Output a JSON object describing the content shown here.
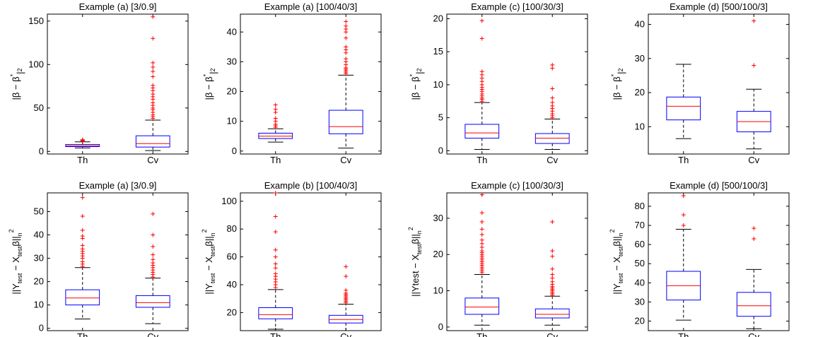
{
  "chart_data": [
    {
      "type": "box",
      "title": "Example (a) [3/0.9]",
      "ylabel": "|β − β*|2",
      "ylim": [
        -3,
        158
      ],
      "yticks": [
        0,
        50,
        100,
        150
      ],
      "categories": [
        "Th",
        "Cv"
      ],
      "boxes": [
        {
          "whisker_low": 4,
          "q1": 5.5,
          "median": 6.5,
          "q3": 8,
          "whisker_high": 11,
          "outliers": [
            12,
            12.5,
            13,
            13.5
          ]
        },
        {
          "whisker_low": 1,
          "q1": 5,
          "median": 9,
          "q3": 18,
          "whisker_high": 36,
          "outliers": [
            38,
            40,
            42,
            45,
            48,
            50,
            53,
            56,
            60,
            63,
            66,
            70,
            73,
            76,
            86,
            92,
            97,
            102,
            130,
            155
          ]
        }
      ]
    },
    {
      "type": "box",
      "title": "Example (a) [100/40/3]",
      "ylabel": "|β − β*|2",
      "ylim": [
        -1,
        46
      ],
      "yticks": [
        0,
        10,
        20,
        30,
        40
      ],
      "categories": [
        "Th",
        "Cv"
      ],
      "boxes": [
        {
          "whisker_low": 3,
          "q1": 4.2,
          "median": 5,
          "q3": 6,
          "whisker_high": 7.5,
          "outliers": [
            8,
            8.5,
            9,
            10,
            11,
            13,
            14,
            15.5
          ]
        },
        {
          "whisker_low": 1,
          "q1": 5.8,
          "median": 8.2,
          "q3": 13.7,
          "whisker_high": 25.5,
          "outliers": [
            26,
            26.5,
            27,
            27.5,
            28,
            29,
            30,
            31,
            33,
            34,
            35,
            38,
            40,
            41,
            42,
            43.5
          ]
        }
      ]
    },
    {
      "type": "box",
      "title": "Example (c) [100/30/3]",
      "ylabel": "|β − β*|2",
      "ylim": [
        -0.5,
        20.7
      ],
      "yticks": [
        0,
        5,
        10,
        15,
        20
      ],
      "categories": [
        "Th",
        "Cv"
      ],
      "boxes": [
        {
          "whisker_low": 0.2,
          "q1": 1.9,
          "median": 2.7,
          "q3": 4,
          "whisker_high": 7.3,
          "outliers": [
            7.5,
            7.8,
            8,
            8.3,
            8.6,
            9,
            9.3,
            9.6,
            10,
            10.5,
            11,
            11.5,
            12,
            17,
            19.7
          ]
        },
        {
          "whisker_low": 0.2,
          "q1": 1.1,
          "median": 1.9,
          "q3": 2.6,
          "whisker_high": 4.8,
          "outliers": [
            5,
            5.3,
            5.6,
            6,
            6.4,
            6.8,
            7.3,
            8,
            9.4,
            12.5,
            13
          ]
        }
      ]
    },
    {
      "type": "box",
      "title": "Example (d) [500/100/3]",
      "ylabel": "|β − β*|2",
      "ylim": [
        2,
        43
      ],
      "yticks": [
        10,
        20,
        30,
        40
      ],
      "categories": [
        "Th",
        "Cv"
      ],
      "boxes": [
        {
          "whisker_low": 6.5,
          "q1": 12,
          "median": 16,
          "q3": 18.7,
          "whisker_high": 28.3,
          "outliers": []
        },
        {
          "whisker_low": 3.5,
          "q1": 8.5,
          "median": 11.5,
          "q3": 14.5,
          "whisker_high": 21,
          "outliers": [
            28,
            41
          ]
        }
      ]
    },
    {
      "type": "box",
      "title": "Example (a) [3/0.9]",
      "ylabel": "||Ytest − Xtestβ||n2",
      "ylim": [
        -1,
        58
      ],
      "yticks": [
        0,
        10,
        20,
        30,
        40,
        50
      ],
      "categories": [
        "Th",
        "Cv"
      ],
      "boxes": [
        {
          "whisker_low": 4,
          "q1": 10,
          "median": 13,
          "q3": 16.5,
          "whisker_high": 26,
          "outliers": [
            26.5,
            27.5,
            28.5,
            30,
            31,
            32,
            33,
            34,
            35.5,
            38.5,
            39.5,
            42,
            48,
            56
          ]
        },
        {
          "whisker_low": 2,
          "q1": 9,
          "median": 11,
          "q3": 14,
          "whisker_high": 21.5,
          "outliers": [
            22,
            23,
            24,
            25,
            26,
            27,
            28,
            29.5,
            31.5,
            35,
            40,
            49
          ]
        }
      ]
    },
    {
      "type": "box",
      "title": "Example (b) [100/40/3]",
      "ylabel": "||Ytest − Xtestβ||n2",
      "ylim": [
        7,
        106
      ],
      "yticks": [
        20,
        40,
        60,
        80,
        100
      ],
      "categories": [
        "Th",
        "Cv"
      ],
      "boxes": [
        {
          "whisker_low": 8,
          "q1": 15.5,
          "median": 18.5,
          "q3": 23.5,
          "whisker_high": 36.5,
          "outliers": [
            38,
            40,
            42,
            44,
            46,
            48,
            52,
            55,
            60,
            65,
            78,
            89,
            106
          ]
        },
        {
          "whisker_low": 7,
          "q1": 12.5,
          "median": 15,
          "q3": 18,
          "whisker_high": 26,
          "outliers": [
            27,
            28,
            29,
            30,
            31,
            32,
            33,
            34,
            36,
            46,
            53
          ]
        }
      ]
    },
    {
      "type": "box",
      "title": "Example (c) [100/30/3]",
      "ylabel": "||Ytest − Xtestβ||n2",
      "ylim": [
        -1,
        37
      ],
      "yticks": [
        0,
        10,
        20,
        30
      ],
      "categories": [
        "Th",
        "Cv"
      ],
      "boxes": [
        {
          "whisker_low": 0.5,
          "q1": 3.5,
          "median": 5.5,
          "q3": 8,
          "whisker_high": 14.5,
          "outliers": [
            15,
            15.5,
            16,
            16.5,
            17,
            17.5,
            18,
            18.5,
            19,
            19.5,
            20,
            20.5,
            21,
            22,
            23,
            24,
            25.5,
            27,
            29,
            31.5,
            36.5
          ]
        },
        {
          "whisker_low": 0.5,
          "q1": 2.5,
          "median": 3.5,
          "q3": 5,
          "whisker_high": 8.5,
          "outliers": [
            8.8,
            9.2,
            9.6,
            10,
            10.4,
            10.8,
            11.2,
            11.8,
            12.5,
            13.5,
            14.5,
            16,
            19.5,
            21,
            29
          ]
        }
      ]
    },
    {
      "type": "box",
      "title": "Example (d) [500/100/3]",
      "ylabel": "||Ytest − Xtestβ||n2",
      "ylim": [
        15,
        87
      ],
      "yticks": [
        20,
        30,
        40,
        50,
        60,
        70,
        80
      ],
      "categories": [
        "Th",
        "Cv"
      ],
      "boxes": [
        {
          "whisker_low": 20.5,
          "q1": 31,
          "median": 38.5,
          "q3": 46,
          "whisker_high": 68,
          "outliers": [
            70,
            75.5,
            85.5
          ]
        },
        {
          "whisker_low": 16,
          "q1": 22.5,
          "median": 28,
          "q3": 35,
          "whisker_high": 47,
          "outliers": [
            63,
            68.5
          ]
        }
      ]
    }
  ],
  "colors": {
    "box": "#0000ff",
    "median": "#ff0000",
    "outlier": "#ff0000",
    "whisker": "#000000"
  }
}
